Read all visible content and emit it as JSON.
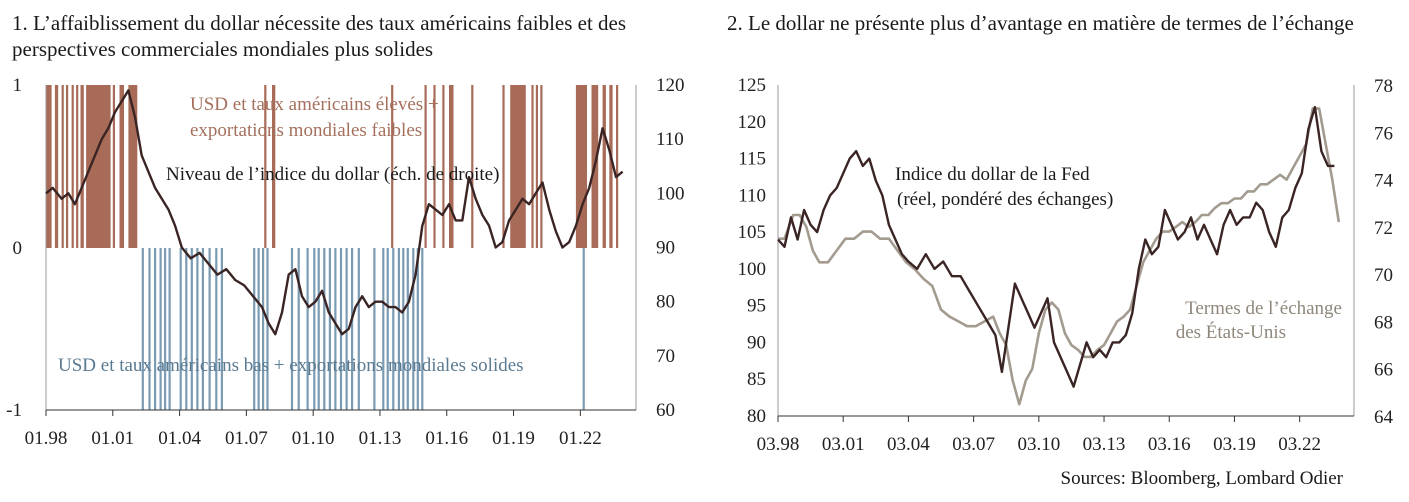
{
  "colors": {
    "dollar": "#3a2424",
    "high_band": "#a86b58",
    "low_band": "#7b9bb3",
    "tot": "#a39b8f",
    "ann_high": "#a4705d",
    "ann_low": "#5a7a92"
  },
  "titles": {
    "chart1": "1. L’affaiblissement du dollar nécessite des taux américains faibles et des perspectives commerciales mondiales plus solides",
    "chart2": "2. Le dollar ne présente plus d’avantage en matière de termes de l’échange"
  },
  "sources": "Sources: Bloomberg, Lombard Odier",
  "chart_data": [
    {
      "type": "line",
      "title": "1. L’affaiblissement du dollar nécessite des taux américains faibles et des perspectives commerciales mondiales plus solides",
      "x_ticks": [
        "01.98",
        "01.01",
        "01.04",
        "01.07",
        "01.10",
        "01.13",
        "01.16",
        "01.19",
        "01.22"
      ],
      "x_range": [
        1998.0,
        2024.5
      ],
      "left_axis": {
        "ticks": [
          "1",
          "0",
          "-1"
        ],
        "range": [
          -1,
          1
        ]
      },
      "right_axis": {
        "ticks": [
          "120",
          "110",
          "100",
          "90",
          "80",
          "70",
          "60"
        ],
        "range": [
          60,
          120
        ]
      },
      "annotations": {
        "high": [
          "USD et taux américains élevés +",
          "exportations mondiales faibles"
        ],
        "dollar": "Niveau de l’indice du dollar (éch. de droite)",
        "low": "USD et taux américains bas + exportations mondiales solides"
      },
      "series": [
        {
          "name": "Niveau de l’indice du dollar (éch. de droite)",
          "axis": "right",
          "x": [
            1998.0,
            1998.3,
            1998.7,
            1999.0,
            1999.3,
            1999.6,
            1999.9,
            2000.2,
            2000.5,
            2000.8,
            2001.1,
            2001.4,
            2001.7,
            2002.0,
            2002.3,
            2002.6,
            2002.9,
            2003.2,
            2003.5,
            2003.8,
            2004.1,
            2004.5,
            2004.9,
            2005.3,
            2005.7,
            2006.1,
            2006.5,
            2006.9,
            2007.3,
            2007.7,
            2008.0,
            2008.3,
            2008.6,
            2008.9,
            2009.2,
            2009.5,
            2009.8,
            2010.1,
            2010.4,
            2010.7,
            2011.0,
            2011.3,
            2011.6,
            2011.9,
            2012.2,
            2012.5,
            2012.8,
            2013.1,
            2013.4,
            2013.7,
            2014.0,
            2014.3,
            2014.6,
            2014.9,
            2015.2,
            2015.5,
            2015.8,
            2016.1,
            2016.4,
            2016.7,
            2017.0,
            2017.3,
            2017.6,
            2017.9,
            2018.2,
            2018.5,
            2018.8,
            2019.1,
            2019.4,
            2019.7,
            2020.0,
            2020.3,
            2020.6,
            2020.9,
            2021.2,
            2021.5,
            2021.8,
            2022.1,
            2022.4,
            2022.7,
            2023.0,
            2023.3,
            2023.6,
            2023.9
          ],
          "values": [
            100,
            101,
            99,
            100,
            98,
            101,
            104,
            107,
            110,
            112,
            115,
            117,
            119,
            114,
            107,
            104,
            101,
            99,
            97,
            94,
            90,
            88,
            89,
            87,
            85,
            86,
            84,
            83,
            81,
            79,
            76,
            74,
            78,
            85,
            86,
            81,
            79,
            80,
            82,
            78,
            76,
            74,
            75,
            79,
            81,
            79,
            80,
            80,
            79,
            79,
            78,
            80,
            85,
            94,
            98,
            97,
            96,
            98,
            95,
            95,
            103,
            99,
            96,
            94,
            90,
            91,
            95,
            97,
            99,
            98,
            100,
            102,
            97,
            93,
            90,
            91,
            94,
            98,
            101,
            106,
            112,
            108,
            103,
            104
          ]
        }
      ],
      "regimes": {
        "high": [
          [
            1998.0,
            1998.25
          ],
          [
            1998.4,
            1998.55
          ],
          [
            1998.7,
            1998.8
          ],
          [
            1998.9,
            1999.0
          ],
          [
            1999.15,
            1999.25
          ],
          [
            1999.35,
            1999.45
          ],
          [
            1999.55,
            1999.7
          ],
          [
            1999.8,
            2000.9
          ],
          [
            2001.0,
            2001.1
          ],
          [
            2001.3,
            2001.5
          ],
          [
            2001.7,
            2002.1
          ],
          [
            2007.8,
            2007.9
          ],
          [
            2008.15,
            2008.3
          ],
          [
            2013.5,
            2013.6
          ],
          [
            2015.0,
            2015.1
          ],
          [
            2015.4,
            2015.5
          ],
          [
            2015.8,
            2015.9
          ],
          [
            2016.1,
            2016.3
          ],
          [
            2017.1,
            2017.2
          ],
          [
            2018.5,
            2018.6
          ],
          [
            2018.85,
            2019.55
          ],
          [
            2019.8,
            2019.9
          ],
          [
            2020.0,
            2020.1
          ],
          [
            2020.2,
            2020.3
          ],
          [
            2021.8,
            2022.3
          ],
          [
            2022.5,
            2022.8
          ],
          [
            2023.0,
            2023.15
          ],
          [
            2023.3,
            2023.45
          ],
          [
            2023.6,
            2023.7
          ]
        ],
        "low": [
          [
            2002.3,
            2002.4
          ],
          [
            2002.6,
            2002.7
          ],
          [
            2002.85,
            2002.95
          ],
          [
            2003.1,
            2003.2
          ],
          [
            2003.3,
            2003.4
          ],
          [
            2003.5,
            2003.6
          ],
          [
            2004.0,
            2004.1
          ],
          [
            2004.25,
            2004.35
          ],
          [
            2004.5,
            2004.6
          ],
          [
            2004.75,
            2004.85
          ],
          [
            2005.0,
            2005.1
          ],
          [
            2005.3,
            2005.4
          ],
          [
            2005.6,
            2005.7
          ],
          [
            2005.85,
            2005.95
          ],
          [
            2007.3,
            2007.4
          ],
          [
            2007.5,
            2007.6
          ],
          [
            2007.7,
            2007.8
          ],
          [
            2007.9,
            2008.0
          ],
          [
            2009.0,
            2009.1
          ],
          [
            2009.3,
            2009.4
          ],
          [
            2009.7,
            2009.8
          ],
          [
            2010.0,
            2010.1
          ],
          [
            2010.2,
            2010.3
          ],
          [
            2010.45,
            2010.55
          ],
          [
            2010.7,
            2010.8
          ],
          [
            2010.95,
            2011.05
          ],
          [
            2011.2,
            2011.3
          ],
          [
            2011.45,
            2011.55
          ],
          [
            2011.7,
            2011.8
          ],
          [
            2012.0,
            2012.1
          ],
          [
            2012.7,
            2012.8
          ],
          [
            2013.1,
            2013.2
          ],
          [
            2013.3,
            2013.4
          ],
          [
            2013.55,
            2013.65
          ],
          [
            2013.8,
            2013.9
          ],
          [
            2014.0,
            2014.1
          ],
          [
            2014.2,
            2014.3
          ],
          [
            2014.45,
            2014.55
          ],
          [
            2014.65,
            2014.75
          ],
          [
            2014.85,
            2014.95
          ],
          [
            2022.1,
            2022.2
          ]
        ]
      }
    },
    {
      "type": "line",
      "title": "2. Le dollar ne présente plus d’avantage en matière de termes de l’échange",
      "x_ticks": [
        "03.98",
        "03.01",
        "03.04",
        "03.07",
        "03.10",
        "03.13",
        "03.16",
        "03.19",
        "03.22"
      ],
      "x_range": [
        1998.0,
        2024.5
      ],
      "left_axis": {
        "ticks": [
          "125",
          "120",
          "115",
          "110",
          "105",
          "100",
          "95",
          "90",
          "85",
          "80"
        ],
        "range": [
          80,
          125
        ]
      },
      "right_axis": {
        "ticks": [
          "78",
          "76",
          "74",
          "72",
          "70",
          "68",
          "66",
          "64"
        ],
        "range": [
          64,
          78
        ]
      },
      "annotations": {
        "fed": [
          "Indice du dollar de la Fed",
          "(réel, pondéré des échanges)"
        ],
        "tot": [
          "Termes de l’échange",
          "des États-Unis"
        ]
      },
      "series": [
        {
          "name": "Indice du dollar de la Fed (réel, pondéré des échanges)",
          "axis": "left",
          "x": [
            1998.0,
            1998.3,
            1998.6,
            1998.9,
            1999.2,
            1999.5,
            1999.8,
            2000.1,
            2000.4,
            2000.7,
            2001.0,
            2001.3,
            2001.6,
            2001.9,
            2002.2,
            2002.5,
            2002.8,
            2003.1,
            2003.4,
            2003.7,
            2004.0,
            2004.4,
            2004.8,
            2005.2,
            2005.6,
            2006.0,
            2006.4,
            2006.8,
            2007.2,
            2007.6,
            2008.0,
            2008.3,
            2008.6,
            2008.9,
            2009.2,
            2009.5,
            2009.8,
            2010.1,
            2010.4,
            2010.7,
            2011.0,
            2011.3,
            2011.6,
            2011.9,
            2012.2,
            2012.5,
            2012.8,
            2013.1,
            2013.4,
            2013.7,
            2014.0,
            2014.3,
            2014.6,
            2014.9,
            2015.2,
            2015.5,
            2015.8,
            2016.1,
            2016.4,
            2016.7,
            2017.0,
            2017.3,
            2017.6,
            2017.9,
            2018.2,
            2018.5,
            2018.8,
            2019.1,
            2019.4,
            2019.7,
            2020.0,
            2020.3,
            2020.6,
            2020.9,
            2021.2,
            2021.5,
            2021.8,
            2022.1,
            2022.4,
            2022.7,
            2023.0,
            2023.3,
            2023.6
          ],
          "values": [
            104,
            103,
            107,
            104,
            108,
            106,
            105,
            108,
            110,
            111,
            113,
            115,
            116,
            114,
            115,
            112,
            110,
            106,
            104,
            102,
            101,
            100,
            102,
            100,
            101,
            99,
            99,
            97,
            95,
            93,
            91,
            86,
            92,
            98,
            96,
            94,
            92,
            94,
            96,
            90,
            88,
            86,
            84,
            87,
            90,
            88,
            89,
            88,
            90,
            90,
            91,
            94,
            100,
            104,
            102,
            103,
            108,
            106,
            104,
            105,
            107,
            104,
            106,
            104,
            102,
            106,
            108,
            106,
            107,
            107,
            109,
            108,
            105,
            103,
            107,
            108,
            111,
            113,
            119,
            122,
            116,
            114,
            114
          ]
        },
        {
          "name": "Termes de l’échange des États-Unis",
          "axis": "right",
          "x": [
            1998.0,
            1998.3,
            1998.7,
            1999.0,
            1999.3,
            1999.6,
            1999.9,
            2000.3,
            2000.7,
            2001.1,
            2001.5,
            2001.9,
            2002.3,
            2002.7,
            2003.1,
            2003.5,
            2003.9,
            2004.3,
            2004.7,
            2005.1,
            2005.5,
            2005.9,
            2006.3,
            2006.7,
            2007.1,
            2007.5,
            2007.9,
            2008.2,
            2008.5,
            2008.8,
            2009.1,
            2009.4,
            2009.7,
            2010.0,
            2010.3,
            2010.6,
            2010.9,
            2011.2,
            2011.5,
            2011.8,
            2012.1,
            2012.4,
            2012.7,
            2013.0,
            2013.3,
            2013.6,
            2013.9,
            2014.2,
            2014.5,
            2014.8,
            2015.1,
            2015.4,
            2015.7,
            2016.0,
            2016.3,
            2016.6,
            2016.9,
            2017.2,
            2017.5,
            2017.8,
            2018.1,
            2018.4,
            2018.7,
            2019.0,
            2019.3,
            2019.6,
            2019.9,
            2020.2,
            2020.5,
            2020.8,
            2021.1,
            2021.4,
            2021.7,
            2022.0,
            2022.3,
            2022.6,
            2022.9,
            2023.2,
            2023.5,
            2023.8
          ],
          "values": [
            71.5,
            71.5,
            72.5,
            72.5,
            72.0,
            71.0,
            70.5,
            70.5,
            71.0,
            71.5,
            71.5,
            71.8,
            71.8,
            71.5,
            71.5,
            71.0,
            70.5,
            70.2,
            69.8,
            69.5,
            68.5,
            68.2,
            68.0,
            67.8,
            67.8,
            68.0,
            68.2,
            67.5,
            67.0,
            65.5,
            64.5,
            65.5,
            66.0,
            67.5,
            68.5,
            68.8,
            68.5,
            67.5,
            67.0,
            66.8,
            66.5,
            66.5,
            66.8,
            67.0,
            67.5,
            68.0,
            68.2,
            68.5,
            69.5,
            70.5,
            71.0,
            71.5,
            71.8,
            71.8,
            72.0,
            72.2,
            72.0,
            72.2,
            72.5,
            72.5,
            72.8,
            73.0,
            73.0,
            73.2,
            73.2,
            73.5,
            73.5,
            73.8,
            73.8,
            74.0,
            74.2,
            74.0,
            74.5,
            75.0,
            75.5,
            77.0,
            77.0,
            75.5,
            74.0,
            72.2
          ]
        }
      ]
    }
  ]
}
